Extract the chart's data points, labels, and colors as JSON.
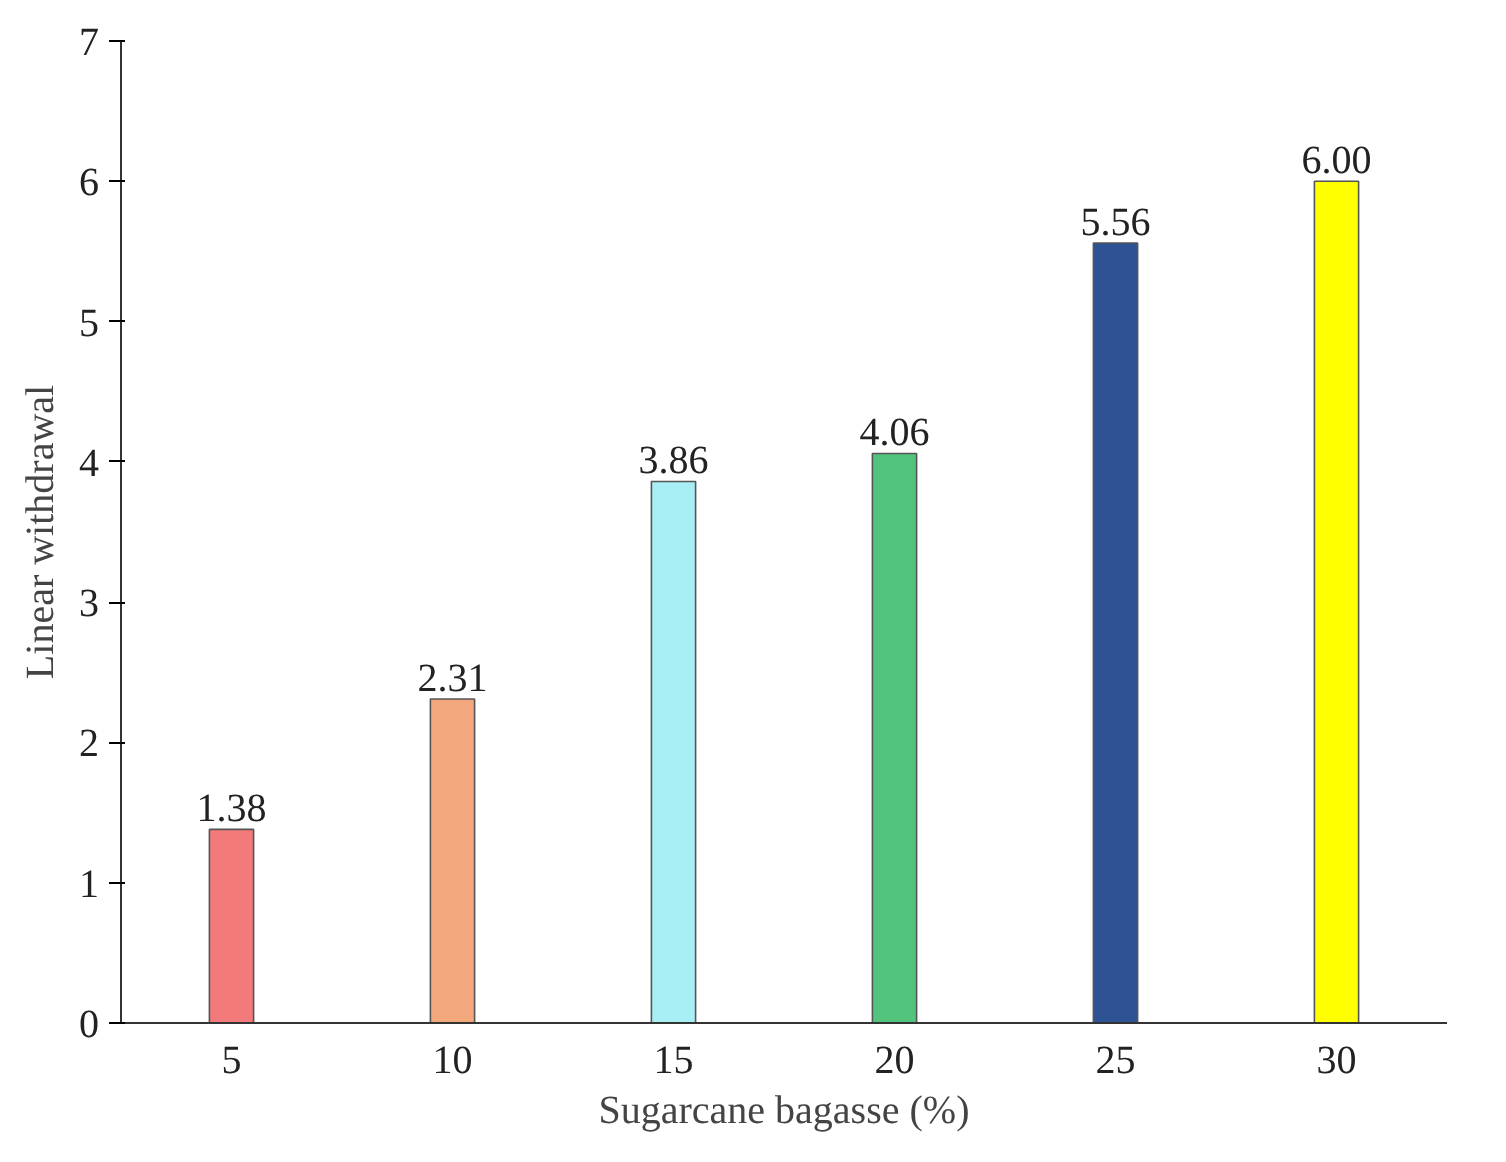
{
  "chart_data": {
    "type": "bar",
    "xlabel": "Sugarcane bagasse (%)",
    "ylabel": "Linear withdrawal",
    "categories": [
      "5",
      "10",
      "15",
      "20",
      "25",
      "30"
    ],
    "values": [
      1.38,
      2.31,
      3.86,
      4.06,
      5.56,
      6.0
    ],
    "value_labels": [
      "1.38",
      "2.31",
      "3.86",
      "4.06",
      "5.56",
      "6.00"
    ],
    "colors": [
      "#f27a7a",
      "#f2a77c",
      "#a8eef5",
      "#52c47e",
      "#2e5395",
      "#ffff00"
    ],
    "ylim": [
      0,
      7
    ],
    "yticks": [
      0,
      1,
      2,
      3,
      4,
      5,
      6,
      7
    ],
    "grid": false
  }
}
